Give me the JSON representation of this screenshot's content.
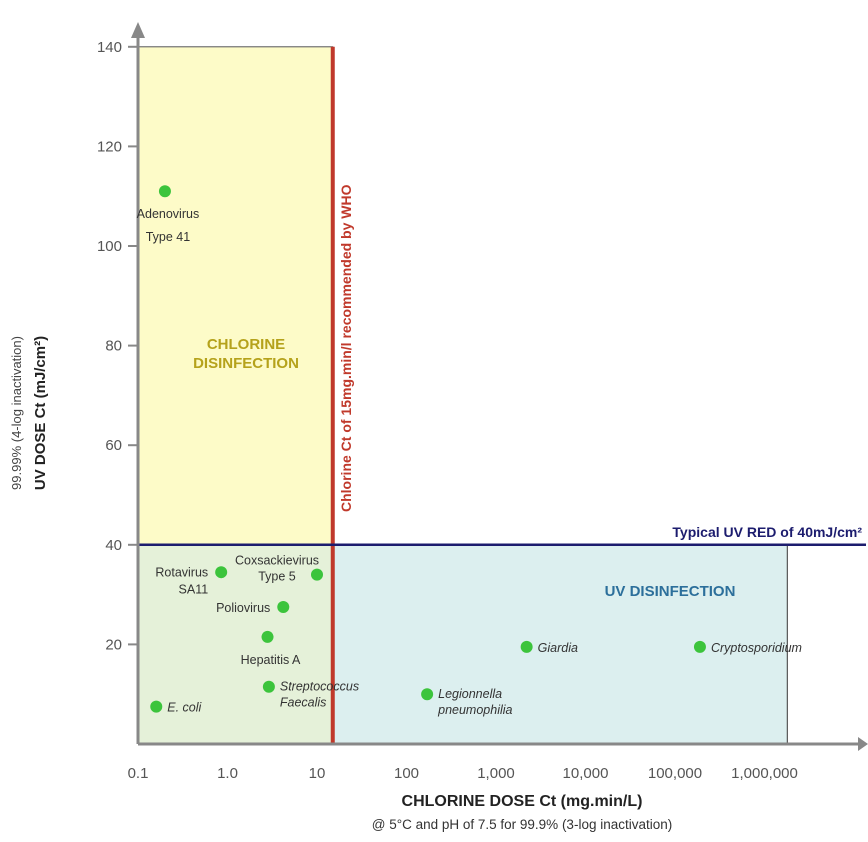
{
  "chart_data": {
    "type": "scatter",
    "x_scale": "log",
    "xlim": [
      0.1,
      10000000
    ],
    "ylim": [
      0,
      140
    ],
    "x_ticks": [
      {
        "value": 0.1,
        "label": "0.1"
      },
      {
        "value": 1,
        "label": "1.0"
      },
      {
        "value": 10,
        "label": "10"
      },
      {
        "value": 100,
        "label": "100"
      },
      {
        "value": 1000,
        "label": "1,000"
      },
      {
        "value": 10000,
        "label": "10,000"
      },
      {
        "value": 100000,
        "label": "100,000"
      },
      {
        "value": 1000000,
        "label": "1,000,000"
      }
    ],
    "y_ticks": [
      {
        "value": 20,
        "label": "20"
      },
      {
        "value": 40,
        "label": "40"
      },
      {
        "value": 60,
        "label": "60"
      },
      {
        "value": 80,
        "label": "80"
      },
      {
        "value": 100,
        "label": "100"
      },
      {
        "value": 120,
        "label": "120"
      },
      {
        "value": 140,
        "label": "140"
      }
    ],
    "xlabel": "CHLORINE DOSE Ct (mg.min/L)",
    "xlabel_sub": "@ 5°C and pH of 7.5 for 99.9% (3-log inactivation)",
    "ylabel_line1": "99.99% (4-log inactivation)",
    "ylabel_line2": "UV DOSE Ct (mJ/cm²)",
    "regions": {
      "chlorine": {
        "label_line1": "CHLORINE",
        "label_line2": "DISINFECTION",
        "x_max": 15,
        "fill": "#fdfbc8",
        "fill_lower": "#e5f1d9"
      },
      "uv": {
        "label": "UV DISINFECTION",
        "x_min": 15,
        "x_max": 1800000,
        "y_max": 40,
        "fill": "#dcefef"
      }
    },
    "reference_lines": [
      {
        "label": "Chlorine Ct of 15mg.min/l recommended by WHO",
        "axis": "x",
        "value": 15,
        "color": "#c0392b"
      },
      {
        "label": "Typical UV RED of 40mJ/cm²",
        "axis": "y",
        "value": 40,
        "color": "#1c1c6e"
      }
    ],
    "points": [
      {
        "label_lines": [
          "Adenovirus",
          "Type 41"
        ],
        "x": 0.2,
        "y": 111,
        "italic": false,
        "label_pos": "below"
      },
      {
        "label_lines": [
          "Rotavirus",
          "SA11"
        ],
        "x": 0.85,
        "y": 34.5,
        "italic": false,
        "label_pos": "left"
      },
      {
        "label_lines": [
          "Coxsackievirus",
          "Type 5"
        ],
        "x": 10,
        "y": 34,
        "italic": false,
        "label_pos": "above-left"
      },
      {
        "label_lines": [
          "Poliovirus"
        ],
        "x": 4.2,
        "y": 27.5,
        "italic": false,
        "label_pos": "left"
      },
      {
        "label_lines": [
          "Hepatitis A"
        ],
        "x": 2.8,
        "y": 21.5,
        "italic": false,
        "label_pos": "below"
      },
      {
        "label_lines": [
          "Streptococcus",
          "Faecalis"
        ],
        "x": 2.9,
        "y": 11.5,
        "italic": true,
        "label_pos": "right"
      },
      {
        "label_lines": [
          "E. coli"
        ],
        "x": 0.16,
        "y": 7.5,
        "italic": true,
        "label_pos": "right"
      },
      {
        "label_lines": [
          "Legionnella",
          "pneumophilia"
        ],
        "x": 170,
        "y": 10,
        "italic": true,
        "label_pos": "right"
      },
      {
        "label_lines": [
          "Giardia"
        ],
        "x": 2200,
        "y": 19.5,
        "italic": true,
        "label_pos": "right"
      },
      {
        "label_lines": [
          "Cryptosporidium"
        ],
        "x": 190000,
        "y": 19.5,
        "italic": true,
        "label_pos": "right"
      }
    ],
    "colors": {
      "point": "#3cc43c",
      "axis": "#888888",
      "region_label_chlorine": "#b5a21b",
      "region_label_uv": "#2c6f9b",
      "region_border": "#555555"
    },
    "grid": false
  }
}
